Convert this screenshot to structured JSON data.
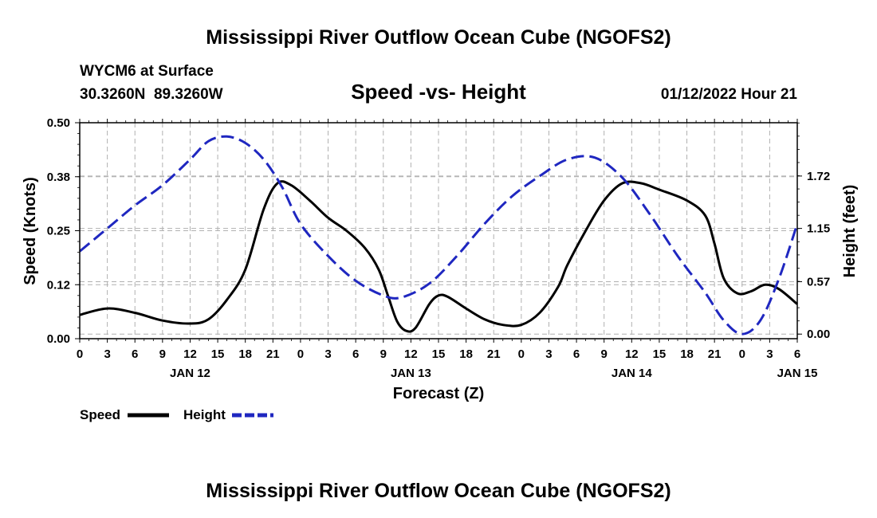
{
  "chart_data": {
    "type": "line",
    "title": "Mississippi River Outflow Ocean Cube (NGOFS2)",
    "station": "WYCM6 at Surface",
    "coords": "30.3260N  89.3260W",
    "subtitle": "Speed -vs- Height",
    "datetime": "01/12/2022 Hour 21",
    "xlabel": "Forecast (Z)",
    "ylabel_left": "Speed (Knots)",
    "ylabel_right": "Height (feet)",
    "x_range_hours": [
      0,
      78
    ],
    "x_tick_labels": [
      "0",
      "3",
      "6",
      "9",
      "12",
      "15",
      "18",
      "21",
      "0",
      "3",
      "6",
      "9",
      "12",
      "15",
      "18",
      "21",
      "0",
      "3",
      "6",
      "9",
      "12",
      "15",
      "18",
      "21",
      "0",
      "3",
      "6"
    ],
    "day_labels": [
      {
        "label": "JAN 12",
        "hour": 12
      },
      {
        "label": "JAN 13",
        "hour": 36
      },
      {
        "label": "JAN 14",
        "hour": 60
      },
      {
        "label": "JAN 15",
        "hour": 78
      }
    ],
    "ylim_left": [
      0,
      0.5
    ],
    "y_ticks_left": [
      {
        "value": 0.0,
        "label": "0.00"
      },
      {
        "value": 0.125,
        "label": "0.12"
      },
      {
        "value": 0.25,
        "label": "0.25"
      },
      {
        "value": 0.375,
        "label": "0.38"
      },
      {
        "value": 0.5,
        "label": "0.50"
      }
    ],
    "ylim_right": [
      -0.05,
      2.3
    ],
    "y_ticks_right": [
      {
        "value": 0.0,
        "label": "0.00"
      },
      {
        "value": 0.57,
        "label": "0.57"
      },
      {
        "value": 1.15,
        "label": "1.15"
      },
      {
        "value": 1.72,
        "label": "1.72"
      }
    ],
    "series": [
      {
        "name": "Speed",
        "axis": "left",
        "color": "#000000",
        "dash": "solid",
        "points": [
          [
            0,
            0.055
          ],
          [
            3,
            0.07
          ],
          [
            6,
            0.06
          ],
          [
            9,
            0.042
          ],
          [
            12,
            0.035
          ],
          [
            14,
            0.045
          ],
          [
            16,
            0.09
          ],
          [
            18,
            0.16
          ],
          [
            20,
            0.3
          ],
          [
            21.5,
            0.36
          ],
          [
            23,
            0.355
          ],
          [
            25,
            0.32
          ],
          [
            27,
            0.28
          ],
          [
            29,
            0.25
          ],
          [
            31,
            0.21
          ],
          [
            32.5,
            0.16
          ],
          [
            33.5,
            0.1
          ],
          [
            34.5,
            0.04
          ],
          [
            35.5,
            0.018
          ],
          [
            36.5,
            0.025
          ],
          [
            38,
            0.08
          ],
          [
            39,
            0.1
          ],
          [
            40,
            0.097
          ],
          [
            42,
            0.07
          ],
          [
            44,
            0.045
          ],
          [
            46,
            0.032
          ],
          [
            48,
            0.032
          ],
          [
            50,
            0.06
          ],
          [
            52,
            0.12
          ],
          [
            53,
            0.17
          ],
          [
            55,
            0.25
          ],
          [
            57,
            0.32
          ],
          [
            59,
            0.36
          ],
          [
            61,
            0.36
          ],
          [
            63,
            0.345
          ],
          [
            66,
            0.32
          ],
          [
            68,
            0.285
          ],
          [
            69,
            0.22
          ],
          [
            70,
            0.14
          ],
          [
            71.5,
            0.105
          ],
          [
            73,
            0.11
          ],
          [
            74.5,
            0.125
          ],
          [
            76,
            0.115
          ],
          [
            78,
            0.08
          ]
        ]
      },
      {
        "name": "Height",
        "axis": "right",
        "color": "#1f27c0",
        "dash": "dashed",
        "points": [
          [
            0,
            0.9
          ],
          [
            3,
            1.15
          ],
          [
            6,
            1.4
          ],
          [
            9,
            1.62
          ],
          [
            12,
            1.9
          ],
          [
            14,
            2.1
          ],
          [
            16,
            2.15
          ],
          [
            18,
            2.08
          ],
          [
            20,
            1.9
          ],
          [
            22,
            1.6
          ],
          [
            24,
            1.2
          ],
          [
            27,
            0.85
          ],
          [
            30,
            0.58
          ],
          [
            33,
            0.42
          ],
          [
            35,
            0.4
          ],
          [
            38,
            0.55
          ],
          [
            41,
            0.85
          ],
          [
            44,
            1.2
          ],
          [
            47,
            1.5
          ],
          [
            50,
            1.72
          ],
          [
            53,
            1.9
          ],
          [
            56,
            1.92
          ],
          [
            59,
            1.7
          ],
          [
            62,
            1.3
          ],
          [
            65,
            0.85
          ],
          [
            68,
            0.45
          ],
          [
            70,
            0.15
          ],
          [
            72,
            0.0
          ],
          [
            74,
            0.15
          ],
          [
            76,
            0.6
          ],
          [
            78,
            1.2
          ]
        ]
      }
    ],
    "legend": [
      {
        "name": "Speed",
        "color": "#000000",
        "dash": "solid"
      },
      {
        "name": "Height",
        "color": "#1f27c0",
        "dash": "dashed"
      }
    ],
    "grid": true
  }
}
